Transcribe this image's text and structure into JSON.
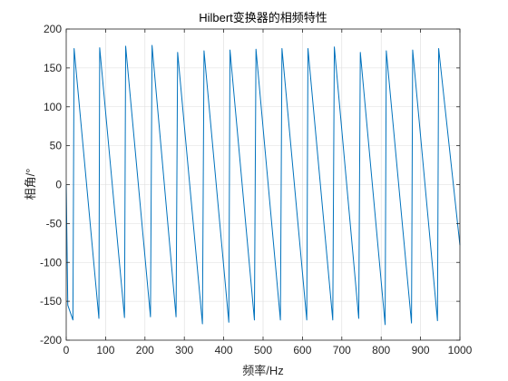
{
  "chart_data": {
    "type": "line",
    "title": "Hilbert变换器的相频特性",
    "xlabel": "频率/Hz",
    "ylabel": "相角/°",
    "xlim": [
      0,
      1000
    ],
    "ylim": [
      -200,
      200
    ],
    "xticks": [
      0,
      100,
      200,
      300,
      400,
      500,
      600,
      700,
      800,
      900,
      1000
    ],
    "yticks": [
      -200,
      -150,
      -100,
      -50,
      0,
      50,
      100,
      150,
      200
    ],
    "grid": true,
    "legend": "none",
    "series": [
      {
        "color": "#0072BD",
        "x": [
          0,
          4,
          17,
          20,
          83,
          85,
          148,
          151,
          214,
          218,
          279,
          283,
          346,
          350,
          413,
          416,
          478,
          482,
          544,
          548,
          611,
          614,
          677,
          681,
          743,
          747,
          810,
          813,
          877,
          880,
          943,
          946,
          1000
        ],
        "y": [
          0,
          -155,
          -174,
          175,
          -172,
          176,
          -171,
          178,
          -170,
          179,
          -170,
          170,
          -179,
          172,
          -177,
          173,
          -174,
          174,
          -174,
          175,
          -174,
          175,
          -174,
          177,
          -172,
          170,
          -180,
          172,
          -178,
          173,
          -175,
          175,
          -78
        ]
      }
    ]
  }
}
